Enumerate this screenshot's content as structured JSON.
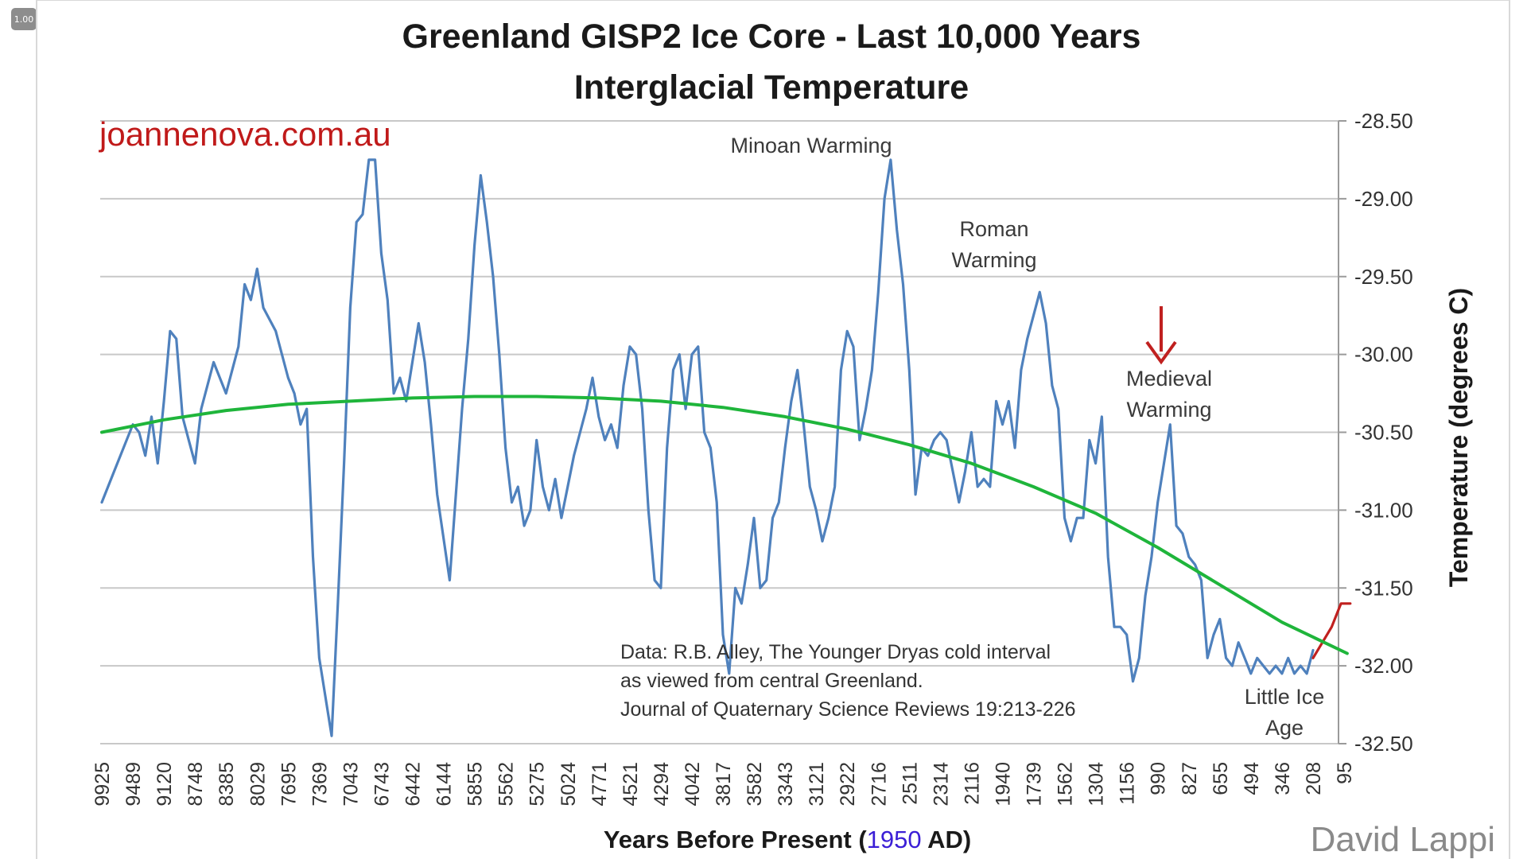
{
  "player": {
    "speed_label": "1.00"
  },
  "chart_data": {
    "type": "line",
    "title": [
      "Greenland GISP2 Ice Core - Last 10,000 Years",
      "Interglacial Temperature"
    ],
    "watermark": "joannenova.com.au",
    "credit": "David Lappi",
    "xlabel": {
      "prefix": "Years Before Present (",
      "year": "1950",
      "suffix": " AD)"
    },
    "ylabel": "Temperature (degrees C)",
    "ylim": [
      -32.5,
      -28.5
    ],
    "y_ticks": [
      -28.5,
      -29.0,
      -29.5,
      -30.0,
      -30.5,
      -31.0,
      -31.5,
      -32.0,
      -32.5
    ],
    "y_tick_labels": [
      "-28.50",
      "-29.00",
      "-29.50",
      "-30.00",
      "-30.50",
      "-31.00",
      "-31.50",
      "-32.00",
      "-32.50"
    ],
    "x_tick_labels": [
      "9925",
      "9489",
      "9120",
      "8748",
      "8385",
      "8029",
      "7695",
      "7369",
      "7043",
      "6743",
      "6442",
      "6144",
      "5855",
      "5562",
      "5275",
      "5024",
      "4771",
      "4521",
      "4294",
      "4042",
      "3817",
      "3582",
      "3343",
      "3121",
      "2922",
      "2716",
      "2511",
      "2314",
      "2116",
      "1940",
      "1739",
      "1562",
      "1304",
      "1156",
      "990",
      "827",
      "655",
      "494",
      "346",
      "208",
      "95"
    ],
    "grid": true,
    "annotations": [
      {
        "text": [
          "Minoan Warming"
        ],
        "years_bp": 3350
      },
      {
        "text": [
          "Roman",
          "Warming"
        ],
        "years_bp": 2100
      },
      {
        "text": [
          "Medieval",
          "Warming"
        ],
        "years_bp": 950
      },
      {
        "text": [
          "Little Ice",
          "Age"
        ],
        "years_bp": 250
      }
    ],
    "source_note": [
      "Data: R.B. Alley,  The Younger Dryas cold interval",
      " as viewed from central Greenland.",
      "Journal of Quaternary  Science Reviews 19:213-226"
    ],
    "arrow": {
      "years_bp": 990,
      "color": "#c0201f"
    },
    "series": [
      {
        "color": "#4f81bd",
        "points_idx": [
          [
            0,
            -30.95
          ],
          [
            0.4,
            -30.75
          ],
          [
            0.8,
            -30.55
          ],
          [
            1.0,
            -30.45
          ],
          [
            1.2,
            -30.5
          ],
          [
            1.4,
            -30.65
          ],
          [
            1.6,
            -30.4
          ],
          [
            1.8,
            -30.7
          ],
          [
            2.0,
            -30.3
          ],
          [
            2.2,
            -29.85
          ],
          [
            2.4,
            -29.9
          ],
          [
            2.6,
            -30.4
          ],
          [
            2.8,
            -30.55
          ],
          [
            3.0,
            -30.7
          ],
          [
            3.2,
            -30.35
          ],
          [
            3.6,
            -30.05
          ],
          [
            4.0,
            -30.25
          ],
          [
            4.2,
            -30.1
          ],
          [
            4.4,
            -29.95
          ],
          [
            4.6,
            -29.55
          ],
          [
            4.8,
            -29.65
          ],
          [
            5.0,
            -29.45
          ],
          [
            5.2,
            -29.7
          ],
          [
            5.6,
            -29.85
          ],
          [
            5.8,
            -30.0
          ],
          [
            6.0,
            -30.15
          ],
          [
            6.2,
            -30.25
          ],
          [
            6.4,
            -30.45
          ],
          [
            6.6,
            -30.35
          ],
          [
            6.8,
            -31.3
          ],
          [
            7.0,
            -31.95
          ],
          [
            7.2,
            -32.2
          ],
          [
            7.4,
            -32.45
          ],
          [
            7.6,
            -31.6
          ],
          [
            7.8,
            -30.7
          ],
          [
            8.0,
            -29.7
          ],
          [
            8.2,
            -29.15
          ],
          [
            8.4,
            -29.1
          ],
          [
            8.6,
            -28.75
          ],
          [
            8.8,
            -28.75
          ],
          [
            9.0,
            -29.35
          ],
          [
            9.2,
            -29.65
          ],
          [
            9.4,
            -30.25
          ],
          [
            9.6,
            -30.15
          ],
          [
            9.8,
            -30.3
          ],
          [
            10.0,
            -30.05
          ],
          [
            10.2,
            -29.8
          ],
          [
            10.4,
            -30.05
          ],
          [
            10.6,
            -30.45
          ],
          [
            10.8,
            -30.9
          ],
          [
            11.2,
            -31.45
          ],
          [
            11.4,
            -30.9
          ],
          [
            11.6,
            -30.35
          ],
          [
            11.8,
            -29.9
          ],
          [
            12.0,
            -29.3
          ],
          [
            12.2,
            -28.85
          ],
          [
            12.4,
            -29.15
          ],
          [
            12.6,
            -29.5
          ],
          [
            12.8,
            -30.0
          ],
          [
            13.0,
            -30.6
          ],
          [
            13.2,
            -30.95
          ],
          [
            13.4,
            -30.85
          ],
          [
            13.6,
            -31.1
          ],
          [
            13.8,
            -31.0
          ],
          [
            14.0,
            -30.55
          ],
          [
            14.2,
            -30.85
          ],
          [
            14.4,
            -31.0
          ],
          [
            14.6,
            -30.8
          ],
          [
            14.8,
            -31.05
          ],
          [
            15.0,
            -30.85
          ],
          [
            15.2,
            -30.65
          ],
          [
            15.4,
            -30.5
          ],
          [
            15.6,
            -30.35
          ],
          [
            15.8,
            -30.15
          ],
          [
            16.0,
            -30.4
          ],
          [
            16.2,
            -30.55
          ],
          [
            16.4,
            -30.45
          ],
          [
            16.6,
            -30.6
          ],
          [
            16.8,
            -30.2
          ],
          [
            17.0,
            -29.95
          ],
          [
            17.2,
            -30.0
          ],
          [
            17.4,
            -30.35
          ],
          [
            17.6,
            -31.0
          ],
          [
            17.8,
            -31.45
          ],
          [
            18.0,
            -31.5
          ],
          [
            18.2,
            -30.6
          ],
          [
            18.4,
            -30.1
          ],
          [
            18.6,
            -30.0
          ],
          [
            18.8,
            -30.35
          ],
          [
            19.0,
            -30.0
          ],
          [
            19.2,
            -29.95
          ],
          [
            19.4,
            -30.5
          ],
          [
            19.6,
            -30.6
          ],
          [
            19.8,
            -30.95
          ],
          [
            20.0,
            -31.8
          ],
          [
            20.2,
            -32.05
          ],
          [
            20.4,
            -31.5
          ],
          [
            20.6,
            -31.6
          ],
          [
            20.8,
            -31.35
          ],
          [
            21.0,
            -31.05
          ],
          [
            21.2,
            -31.5
          ],
          [
            21.4,
            -31.45
          ],
          [
            21.6,
            -31.05
          ],
          [
            21.8,
            -30.95
          ],
          [
            22.0,
            -30.6
          ],
          [
            22.2,
            -30.3
          ],
          [
            22.4,
            -30.1
          ],
          [
            22.6,
            -30.45
          ],
          [
            22.8,
            -30.85
          ],
          [
            23.0,
            -31.0
          ],
          [
            23.2,
            -31.2
          ],
          [
            23.4,
            -31.05
          ],
          [
            23.6,
            -30.85
          ],
          [
            23.8,
            -30.1
          ],
          [
            24.0,
            -29.85
          ],
          [
            24.2,
            -29.95
          ],
          [
            24.4,
            -30.55
          ],
          [
            24.6,
            -30.35
          ],
          [
            24.8,
            -30.1
          ],
          [
            25.0,
            -29.6
          ],
          [
            25.2,
            -29.0
          ],
          [
            25.4,
            -28.75
          ],
          [
            25.6,
            -29.2
          ],
          [
            25.8,
            -29.55
          ],
          [
            26.0,
            -30.1
          ],
          [
            26.2,
            -30.9
          ],
          [
            26.4,
            -30.6
          ],
          [
            26.6,
            -30.65
          ],
          [
            26.8,
            -30.55
          ],
          [
            27.0,
            -30.5
          ],
          [
            27.2,
            -30.55
          ],
          [
            27.4,
            -30.75
          ],
          [
            27.6,
            -30.95
          ],
          [
            27.8,
            -30.75
          ],
          [
            28.0,
            -30.5
          ],
          [
            28.2,
            -30.85
          ],
          [
            28.4,
            -30.8
          ],
          [
            28.6,
            -30.85
          ],
          [
            28.8,
            -30.3
          ],
          [
            29.0,
            -30.45
          ],
          [
            29.2,
            -30.3
          ],
          [
            29.4,
            -30.6
          ],
          [
            29.6,
            -30.1
          ],
          [
            29.8,
            -29.9
          ],
          [
            30.0,
            -29.75
          ],
          [
            30.2,
            -29.6
          ],
          [
            30.4,
            -29.8
          ],
          [
            30.6,
            -30.2
          ],
          [
            30.8,
            -30.35
          ],
          [
            31.0,
            -31.05
          ],
          [
            31.2,
            -31.2
          ],
          [
            31.4,
            -31.05
          ],
          [
            31.6,
            -31.05
          ],
          [
            31.8,
            -30.55
          ],
          [
            32.0,
            -30.7
          ],
          [
            32.2,
            -30.4
          ],
          [
            32.4,
            -31.3
          ],
          [
            32.6,
            -31.75
          ],
          [
            32.8,
            -31.75
          ],
          [
            33.0,
            -31.8
          ],
          [
            33.2,
            -32.1
          ],
          [
            33.4,
            -31.95
          ],
          [
            33.6,
            -31.55
          ],
          [
            33.8,
            -31.3
          ],
          [
            34.0,
            -30.95
          ],
          [
            34.2,
            -30.7
          ],
          [
            34.4,
            -30.45
          ],
          [
            34.6,
            -31.1
          ],
          [
            34.8,
            -31.15
          ],
          [
            35.0,
            -31.3
          ],
          [
            35.2,
            -31.35
          ],
          [
            35.4,
            -31.45
          ],
          [
            35.6,
            -31.95
          ],
          [
            35.8,
            -31.8
          ],
          [
            36.0,
            -31.7
          ],
          [
            36.2,
            -31.95
          ],
          [
            36.4,
            -32.0
          ],
          [
            36.6,
            -31.85
          ],
          [
            36.8,
            -31.95
          ],
          [
            37.0,
            -32.05
          ],
          [
            37.2,
            -31.95
          ],
          [
            37.4,
            -32.0
          ],
          [
            37.6,
            -32.05
          ],
          [
            37.8,
            -32.0
          ],
          [
            38.0,
            -32.05
          ],
          [
            38.2,
            -31.95
          ],
          [
            38.4,
            -32.05
          ],
          [
            38.6,
            -32.0
          ],
          [
            38.8,
            -32.05
          ],
          [
            39.0,
            -31.9
          ]
        ]
      },
      {
        "color": "#c0201f",
        "points_idx": [
          [
            39.0,
            -31.95
          ],
          [
            39.3,
            -31.85
          ],
          [
            39.6,
            -31.75
          ],
          [
            39.9,
            -31.6
          ],
          [
            40.2,
            -31.6
          ]
        ]
      },
      {
        "name": "trend",
        "color": "#1fb53b",
        "points_idx": [
          [
            0,
            -30.5
          ],
          [
            2,
            -30.42
          ],
          [
            4,
            -30.36
          ],
          [
            6,
            -30.32
          ],
          [
            8,
            -30.3
          ],
          [
            10,
            -30.28
          ],
          [
            12,
            -30.27
          ],
          [
            14,
            -30.27
          ],
          [
            16,
            -30.28
          ],
          [
            18,
            -30.3
          ],
          [
            20,
            -30.34
          ],
          [
            22,
            -30.4
          ],
          [
            24,
            -30.48
          ],
          [
            26,
            -30.58
          ],
          [
            28,
            -30.7
          ],
          [
            30,
            -30.85
          ],
          [
            32,
            -31.02
          ],
          [
            34,
            -31.24
          ],
          [
            36,
            -31.48
          ],
          [
            38,
            -31.72
          ],
          [
            40.1,
            -31.92
          ]
        ]
      }
    ]
  }
}
